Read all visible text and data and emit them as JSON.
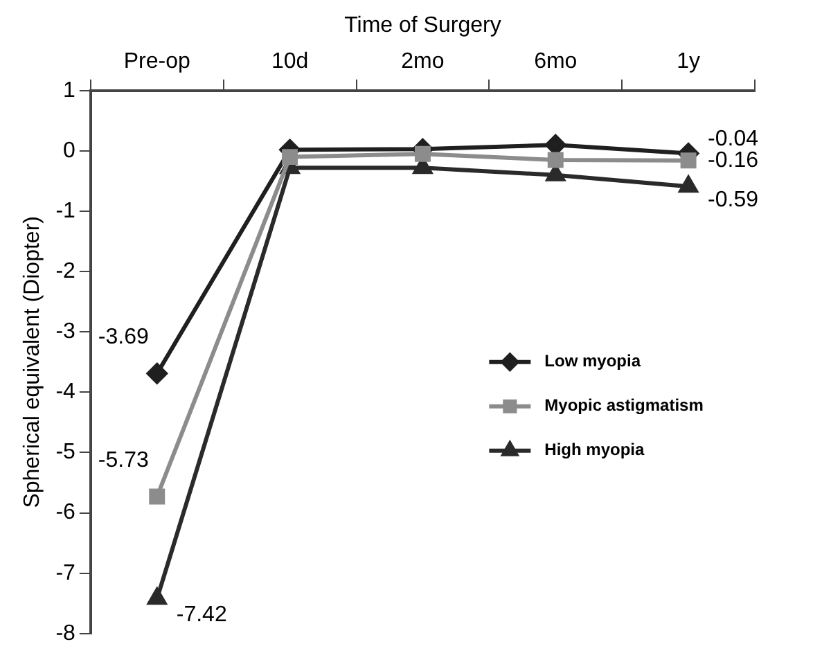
{
  "chart_data": {
    "type": "line",
    "xlabel": "Time of Surgery",
    "ylabel": "Spherical equivalent (Diopter)",
    "categories": [
      "Pre-op",
      "10d",
      "2mo",
      "6mo",
      "1y"
    ],
    "series": [
      {
        "name": "Low myopia",
        "color": "#1f1f1f",
        "marker": "diamond",
        "values": [
          -3.69,
          0.02,
          0.03,
          0.1,
          -0.04
        ],
        "value_labels": [
          "-3.69",
          null,
          null,
          null,
          "-0.04"
        ]
      },
      {
        "name": "Myopic astigmatism",
        "color": "#8c8c8c",
        "marker": "square",
        "values": [
          -5.73,
          -0.1,
          -0.05,
          -0.15,
          -0.16
        ],
        "value_labels": [
          "-5.73",
          null,
          null,
          null,
          "-0.16"
        ]
      },
      {
        "name": "High myopia",
        "color": "#2a2a2a",
        "marker": "triangle",
        "values": [
          -7.42,
          -0.28,
          -0.28,
          -0.4,
          -0.59
        ],
        "value_labels": [
          "-7.42",
          null,
          null,
          null,
          "-0.59"
        ]
      }
    ],
    "ylim": [
      -8,
      1
    ],
    "yticks": [
      -8,
      -7,
      -6,
      -5,
      -4,
      -3,
      -2,
      -1,
      0,
      1
    ],
    "grid": false,
    "legend": "right",
    "line_style": "solid"
  }
}
